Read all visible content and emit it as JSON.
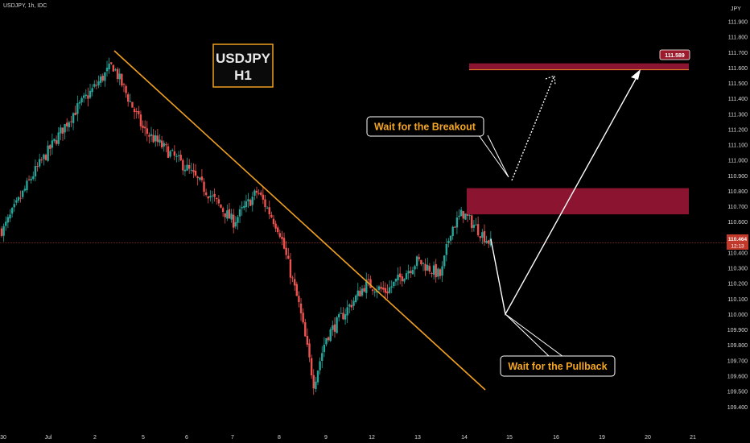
{
  "header": {
    "symbol_line": "USDJPY, 1h, IDC",
    "currency": "JPY"
  },
  "badge": {
    "line1": "USDJPY",
    "line2": "H1"
  },
  "annotations": {
    "breakout": "Wait for the Breakout",
    "pullback": "Wait for the Pullback"
  },
  "price_labels": {
    "target": "111.589",
    "current": "110.464",
    "countdown": "12:13"
  },
  "colors": {
    "background": "#000000",
    "bull": "#26a69a",
    "bear": "#ef5350",
    "trendline": "#f0a020",
    "zone": "#8b1530",
    "annotation_text": "#f5a623",
    "price_line": "#c0392b"
  },
  "chart_data": {
    "type": "candlestick",
    "symbol": "USDJPY",
    "timeframe": "1h",
    "ylim": [
      109.4,
      112.0
    ],
    "y_ticks": [
      "111.900",
      "111.800",
      "111.700",
      "111.600",
      "111.500",
      "111.400",
      "111.300",
      "111.200",
      "111.100",
      "111.000",
      "110.900",
      "110.800",
      "110.700",
      "110.600",
      "110.500",
      "110.400",
      "110.300",
      "110.200",
      "110.100",
      "110.000",
      "109.900",
      "109.800",
      "109.700",
      "109.600",
      "109.500",
      "109.400"
    ],
    "x_ticks": [
      "30",
      "Jul",
      "2",
      "5",
      "6",
      "7",
      "8",
      "9",
      "12",
      "13",
      "14",
      "15",
      "16",
      "19",
      "20",
      "21"
    ],
    "price_path": [
      {
        "x": "30",
        "y": 110.55
      },
      {
        "x": "Jul",
        "y": 110.9
      },
      {
        "x": "Jul",
        "y": 111.3
      },
      {
        "x": "2",
        "y": 111.62
      },
      {
        "x": "5",
        "y": 111.2
      },
      {
        "x": "6",
        "y": 110.95
      },
      {
        "x": "7",
        "y": 110.6
      },
      {
        "x": "7",
        "y": 110.8
      },
      {
        "x": "8",
        "y": 110.55
      },
      {
        "x": "8",
        "y": 110.05
      },
      {
        "x": "9",
        "y": 109.55
      },
      {
        "x": "9",
        "y": 109.85
      },
      {
        "x": "12",
        "y": 110.2
      },
      {
        "x": "12",
        "y": 110.15
      },
      {
        "x": "13",
        "y": 110.35
      },
      {
        "x": "13",
        "y": 110.25
      },
      {
        "x": "14",
        "y": 110.55
      },
      {
        "x": "14",
        "y": 110.66
      },
      {
        "x": "14",
        "y": 110.46
      }
    ],
    "current_price": 110.464,
    "target_price": 111.589,
    "zones": [
      {
        "name": "resistance",
        "y_top": 110.82,
        "y_bottom": 110.65
      },
      {
        "name": "target",
        "y_top": 111.63,
        "y_bottom": 111.585
      }
    ]
  }
}
